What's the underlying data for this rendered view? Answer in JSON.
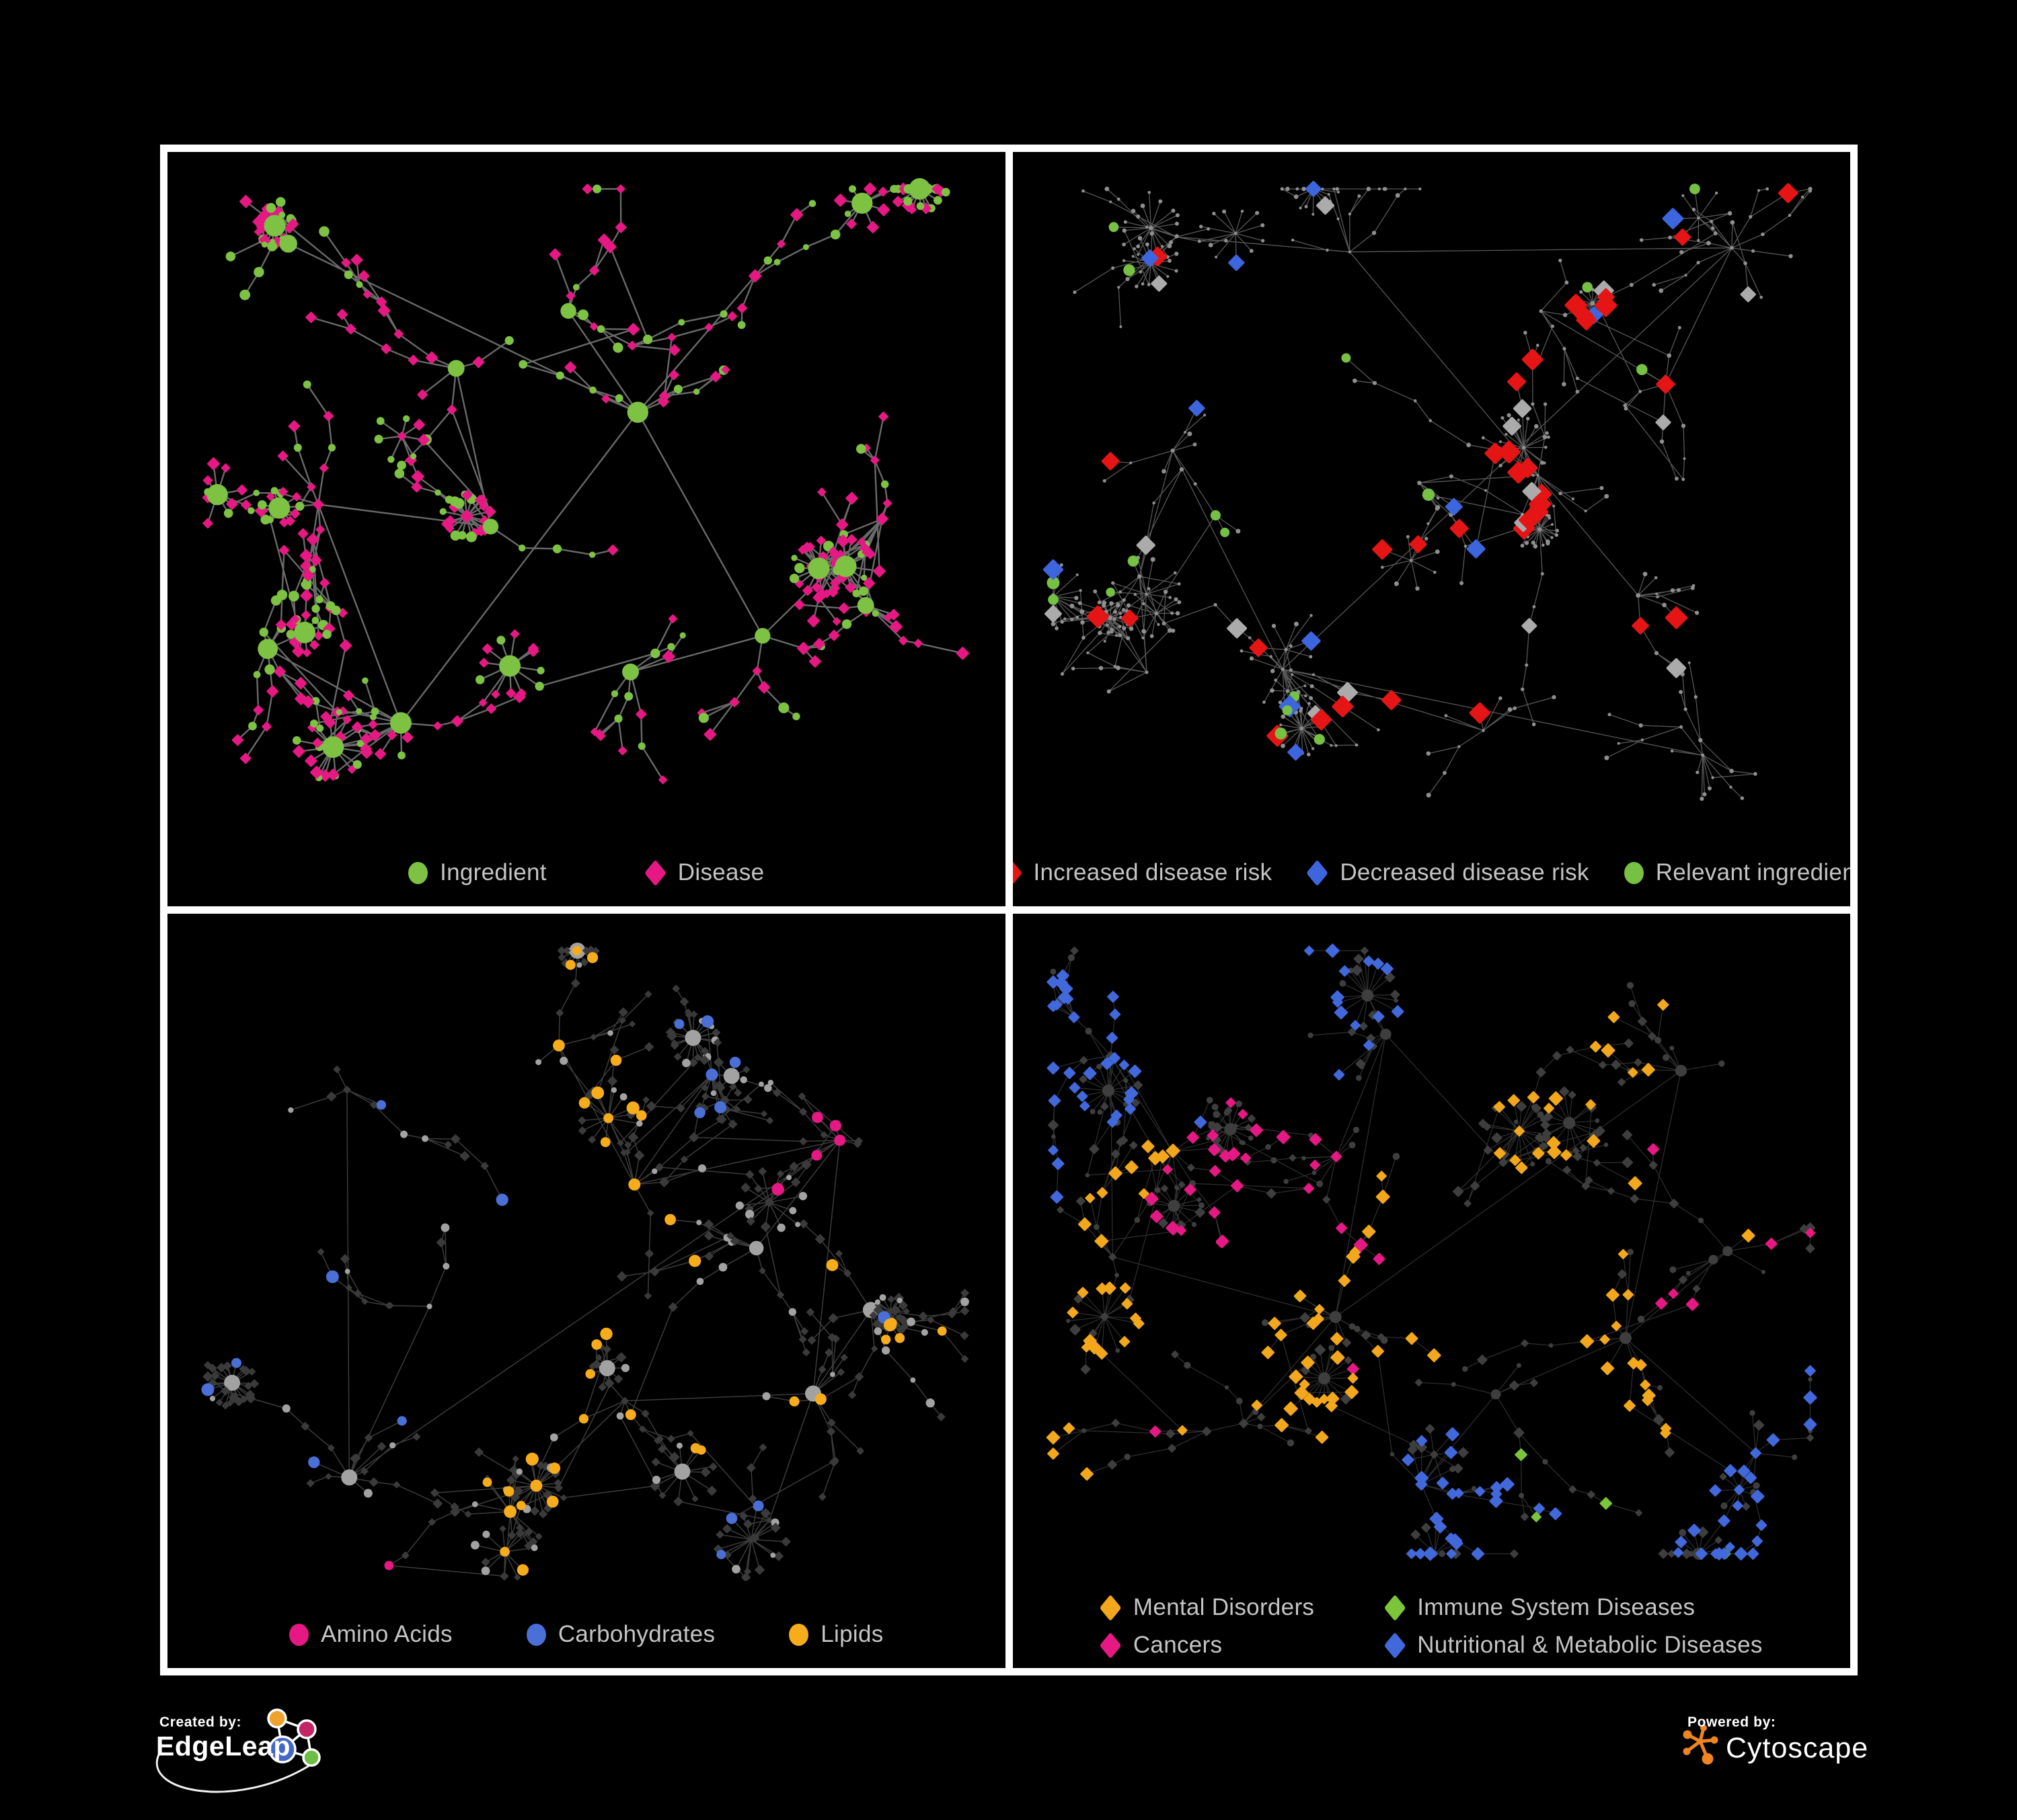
{
  "page": {
    "background": "#000000",
    "frame_color": "#FFFFFF",
    "legend_text_color": "#C4C4C4"
  },
  "branding": {
    "created_by": {
      "label": "Created by:",
      "name": "EdgeLeap",
      "logo_colors": {
        "orange": "#EFA32F",
        "magenta": "#C42565",
        "blue": "#4468C8",
        "green": "#6DBE45",
        "line": "#FFFFFF"
      }
    },
    "powered_by": {
      "label": "Powered by:",
      "name": "Cytoscape",
      "logo_color": "#EE8422"
    }
  },
  "panels": [
    {
      "title": "ingredient-disease-network",
      "legend": [
        {
          "label": "Ingredient",
          "shape": "circle",
          "color": "#7DC242"
        },
        {
          "label": "Disease",
          "shape": "diamond",
          "color": "#E61984"
        }
      ],
      "net": {
        "seed": 1103,
        "nodes": 430,
        "clusters": 13,
        "star_rate": 0.045,
        "cross_rate": 0.1,
        "hub_circle_p": 0.78,
        "leaf_circle_p": 0.34,
        "legend_reserve": 95,
        "edge": {
          "color": "#757575",
          "width": 2.4,
          "opacity": 0.9
        },
        "mode": "types",
        "types": {
          "circle": {
            "fill": "#7DC242",
            "r_leaf": 6,
            "r_hub": 8.5,
            "r_per_kid": 0.8,
            "r_max": 16
          },
          "diamond": {
            "fill": "#E61984",
            "s": 5.8
          }
        }
      }
    },
    {
      "title": "disease-risk-network",
      "legend": [
        {
          "label": "Increased disease risk",
          "shape": "diamond",
          "color": "#E51515"
        },
        {
          "label": "Decreased disease risk",
          "shape": "diamond",
          "color": "#3D66DE"
        },
        {
          "label": "Relevant ingredient",
          "shape": "circle",
          "color": "#76C043"
        }
      ],
      "net": {
        "seed": 2207,
        "nodes": 520,
        "clusters": 14,
        "star_rate": 0.05,
        "cross_rate": 0.12,
        "hub_circle_p": 0.6,
        "leaf_circle_p": 0.3,
        "legend_reserve": 95,
        "edge": {
          "color": "#6E6E6E",
          "width": 1.3,
          "opacity": 0.8
        },
        "mode": "spot",
        "spot": {
          "base": {
            "fill": "#8F8F8F",
            "r": 2.6
          },
          "diamond_cats": [
            {
              "color": "#E51515",
              "w": 3,
              "s": 11
            },
            {
              "color": "#3D66DE",
              "w": 1,
              "s": 10.5
            },
            {
              "color": "#ABABAB",
              "w": 1,
              "s": 10
            }
          ],
          "diamond_rate": 0.4,
          "circle": {
            "color": "#76C043",
            "r": 8,
            "rate": 0.25
          }
        }
      }
    },
    {
      "title": "ingredient-categories-network",
      "legend": [
        {
          "label": "Amino Acids",
          "shape": "circle",
          "color": "#E61984"
        },
        {
          "label": "Carbohydrates",
          "shape": "circle",
          "color": "#4A6FD6"
        },
        {
          "label": "Lipids",
          "shape": "circle",
          "color": "#F7AC1B"
        }
      ],
      "net": {
        "seed": 3301,
        "nodes": 450,
        "clusters": 13,
        "star_rate": 0.05,
        "cross_rate": 0.1,
        "hub_circle_p": 0.7,
        "leaf_circle_p": 0.3,
        "legend_reserve": 95,
        "edge": {
          "color": "#646464",
          "width": 1.5,
          "opacity": 0.6
        },
        "mode": "cats",
        "cats": {
          "target": "circle",
          "list": [
            {
              "color": "#F7AC1B",
              "w": 3
            },
            {
              "color": "#E61984",
              "w": 1.4
            },
            {
              "color": "#4A6FD6",
              "w": 1
            }
          ],
          "rate": 0.6,
          "other_rate": 0.05,
          "r": 8,
          "s": 6,
          "base_circle": {
            "fill": "#A2A2A2",
            "r_leaf": 5,
            "r_hub": 7.5,
            "r_per_kid": 0.55,
            "r_max": 12
          },
          "base_diamond": {
            "fill": "#3A3A3A",
            "s": 4.5
          }
        }
      }
    },
    {
      "title": "disease-categories-network",
      "legend": [
        {
          "label": "Mental Disorders",
          "shape": "diamond",
          "color": "#F2A71C"
        },
        {
          "label": "Immune System Diseases",
          "shape": "diamond",
          "color": "#7CC53B"
        },
        {
          "label": "Cancers",
          "shape": "diamond",
          "color": "#E61984"
        },
        {
          "label": "Nutritional & Metabolic Diseases",
          "shape": "diamond",
          "color": "#4169DC"
        }
      ],
      "net": {
        "seed": 4409,
        "nodes": 530,
        "clusters": 14,
        "star_rate": 0.05,
        "cross_rate": 0.12,
        "hub_circle_p": 0.5,
        "leaf_circle_p": 0.22,
        "legend_reserve": 130,
        "edge": {
          "color": "#575757",
          "width": 1.2,
          "opacity": 0.55
        },
        "mode": "cats",
        "cats": {
          "target": "diamond",
          "list": [
            {
              "color": "#F2A71C",
              "w": 2.6
            },
            {
              "color": "#E61984",
              "w": 2.2
            },
            {
              "color": "#4169DC",
              "w": 2.2
            },
            {
              "color": "#7CC53B",
              "w": 0.35
            }
          ],
          "rate": 0.75,
          "other_rate": 0.07,
          "r": 6,
          "s": 6.6,
          "base_circle": {
            "fill": "#3E3E3E",
            "r_leaf": 4,
            "r_hub": 5.5,
            "r_per_kid": 0.4,
            "r_max": 9
          },
          "base_diamond": {
            "fill": "#3E3E3E",
            "s": 5
          }
        }
      }
    }
  ]
}
